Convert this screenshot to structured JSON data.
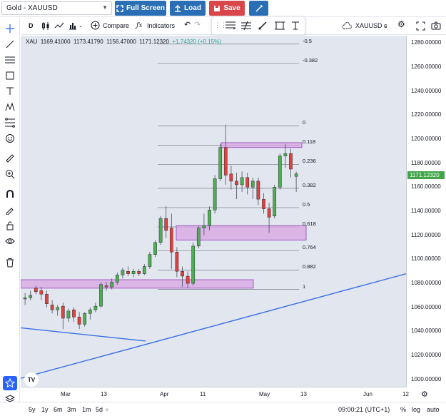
{
  "symbol_select": {
    "value": "Gold - XAUUSD"
  },
  "top_buttons": {
    "fullscreen": "Full Screen",
    "load": "Load",
    "save": "Save"
  },
  "toolbar": {
    "interval": "D",
    "compare": "Compare",
    "indicators": "Indicators",
    "symbol_short": "XAUUSD c"
  },
  "legend": {
    "symbol": "XAU",
    "open": "1169.41000",
    "high": "1173.41790",
    "low": "1156.47000",
    "close": "1171.12320",
    "change": "+1.74320 (+0.15%)"
  },
  "price_axis": {
    "labels": [
      "1280.00000",
      "1260.00000",
      "1240.00000",
      "1220.00000",
      "1200.00000",
      "1180.00000",
      "1160.00000",
      "1140.00000",
      "1120.00000",
      "1100.00000",
      "1080.00000",
      "1060.00000",
      "1040.00000",
      "1020.00000",
      "1000.00000"
    ],
    "current_price": "1171.12320"
  },
  "time_axis": {
    "labels": [
      "Mar",
      "13",
      "Apr",
      "11",
      "May",
      "13",
      "Jun",
      "12"
    ]
  },
  "fib_levels": [
    "-0.5",
    "-0.382",
    "0",
    "0.118",
    "0.236",
    "0.382",
    "0.5",
    "0.618",
    "0.764",
    "0.882",
    "1"
  ],
  "bottom_bar": {
    "ranges": [
      "5y",
      "1y",
      "6m",
      "3m",
      "1m",
      "5d"
    ],
    "clock": "09:00:21 (UTC+1)",
    "percent": "%",
    "log": "log",
    "auto": "auto"
  },
  "watermark": "TV",
  "colors": {
    "up": "#4caf50",
    "down": "#e0413f",
    "trend": "#3a6fe8",
    "zone": "#d7a4e3",
    "bg": "#e2e6ee"
  },
  "chart_data": {
    "type": "candlestick",
    "y_range": [
      994,
      1286
    ],
    "candles": [
      {
        "o": 1067,
        "h": 1072,
        "l": 1062,
        "c": 1068
      },
      {
        "o": 1068,
        "h": 1074,
        "l": 1066,
        "c": 1070
      },
      {
        "o": 1076,
        "h": 1078,
        "l": 1071,
        "c": 1073
      },
      {
        "o": 1074,
        "h": 1077,
        "l": 1066,
        "c": 1071
      },
      {
        "o": 1071,
        "h": 1074,
        "l": 1060,
        "c": 1063
      },
      {
        "o": 1062,
        "h": 1066,
        "l": 1055,
        "c": 1058
      },
      {
        "o": 1058,
        "h": 1062,
        "l": 1053,
        "c": 1060
      },
      {
        "o": 1061,
        "h": 1064,
        "l": 1042,
        "c": 1051
      },
      {
        "o": 1051,
        "h": 1059,
        "l": 1048,
        "c": 1057
      },
      {
        "o": 1058,
        "h": 1060,
        "l": 1048,
        "c": 1052
      },
      {
        "o": 1052,
        "h": 1056,
        "l": 1042,
        "c": 1046
      },
      {
        "o": 1046,
        "h": 1056,
        "l": 1044,
        "c": 1055
      },
      {
        "o": 1055,
        "h": 1060,
        "l": 1050,
        "c": 1058
      },
      {
        "o": 1058,
        "h": 1064,
        "l": 1056,
        "c": 1061
      },
      {
        "o": 1061,
        "h": 1081,
        "l": 1060,
        "c": 1079
      },
      {
        "o": 1078,
        "h": 1081,
        "l": 1074,
        "c": 1077
      },
      {
        "o": 1077,
        "h": 1084,
        "l": 1075,
        "c": 1081
      },
      {
        "o": 1081,
        "h": 1089,
        "l": 1079,
        "c": 1087
      },
      {
        "o": 1087,
        "h": 1093,
        "l": 1084,
        "c": 1091
      },
      {
        "o": 1090,
        "h": 1094,
        "l": 1086,
        "c": 1088
      },
      {
        "o": 1088,
        "h": 1092,
        "l": 1085,
        "c": 1090
      },
      {
        "o": 1090,
        "h": 1092,
        "l": 1086,
        "c": 1088
      },
      {
        "o": 1088,
        "h": 1096,
        "l": 1087,
        "c": 1094
      },
      {
        "o": 1094,
        "h": 1106,
        "l": 1092,
        "c": 1104
      },
      {
        "o": 1104,
        "h": 1116,
        "l": 1102,
        "c": 1114
      },
      {
        "o": 1114,
        "h": 1136,
        "l": 1112,
        "c": 1134
      },
      {
        "o": 1134,
        "h": 1144,
        "l": 1118,
        "c": 1124
      },
      {
        "o": 1126,
        "h": 1138,
        "l": 1092,
        "c": 1106
      },
      {
        "o": 1106,
        "h": 1110,
        "l": 1085,
        "c": 1090
      },
      {
        "o": 1090,
        "h": 1094,
        "l": 1077,
        "c": 1086
      },
      {
        "o": 1086,
        "h": 1090,
        "l": 1076,
        "c": 1080
      },
      {
        "o": 1080,
        "h": 1114,
        "l": 1078,
        "c": 1111
      },
      {
        "o": 1111,
        "h": 1128,
        "l": 1109,
        "c": 1126
      },
      {
        "o": 1126,
        "h": 1138,
        "l": 1120,
        "c": 1128
      },
      {
        "o": 1128,
        "h": 1144,
        "l": 1124,
        "c": 1141
      },
      {
        "o": 1141,
        "h": 1170,
        "l": 1138,
        "c": 1167
      },
      {
        "o": 1167,
        "h": 1196,
        "l": 1165,
        "c": 1193
      },
      {
        "o": 1193,
        "h": 1212,
        "l": 1162,
        "c": 1170
      },
      {
        "o": 1171,
        "h": 1178,
        "l": 1158,
        "c": 1165
      },
      {
        "o": 1165,
        "h": 1172,
        "l": 1150,
        "c": 1162
      },
      {
        "o": 1162,
        "h": 1173,
        "l": 1156,
        "c": 1168
      },
      {
        "o": 1168,
        "h": 1172,
        "l": 1154,
        "c": 1160
      },
      {
        "o": 1160,
        "h": 1168,
        "l": 1150,
        "c": 1165
      },
      {
        "o": 1165,
        "h": 1168,
        "l": 1145,
        "c": 1150
      },
      {
        "o": 1150,
        "h": 1155,
        "l": 1138,
        "c": 1142
      },
      {
        "o": 1142,
        "h": 1147,
        "l": 1122,
        "c": 1135
      },
      {
        "o": 1136,
        "h": 1162,
        "l": 1134,
        "c": 1160
      },
      {
        "o": 1160,
        "h": 1188,
        "l": 1158,
        "c": 1186
      },
      {
        "o": 1186,
        "h": 1196,
        "l": 1176,
        "c": 1188
      },
      {
        "o": 1188,
        "h": 1192,
        "l": 1168,
        "c": 1175
      },
      {
        "o": 1169,
        "h": 1173,
        "l": 1156,
        "c": 1171
      }
    ]
  }
}
